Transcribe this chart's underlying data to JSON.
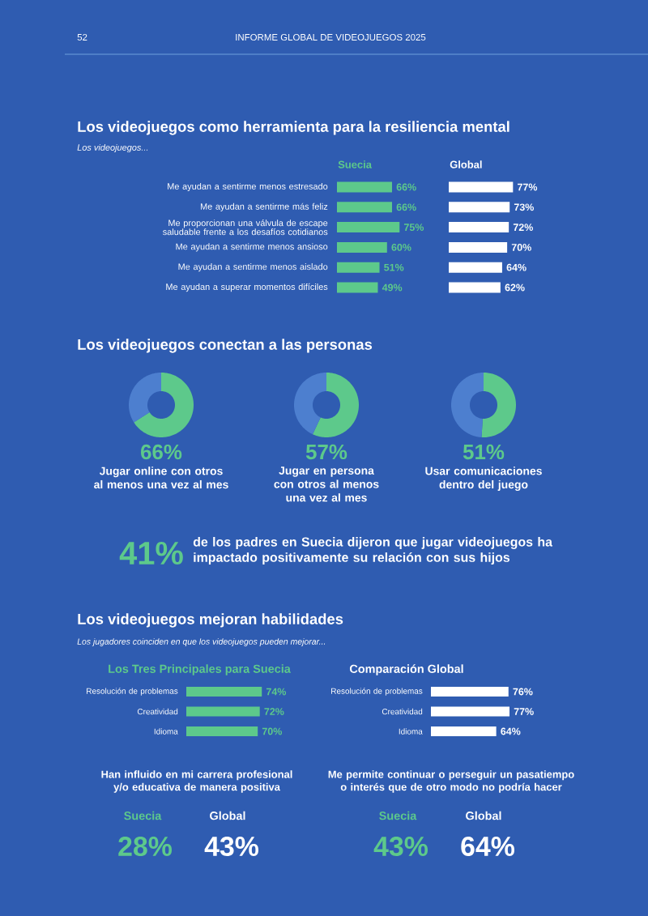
{
  "chart_data": [
    {
      "type": "other",
      "annotations": [
        "52",
        "INFORME GLOBAL DE VIDEOJUEGOS 2025"
      ]
    },
    {
      "type": "other",
      "title": "Los videojuegos como herramienta para la resiliencia mental",
      "subtitle": "Los videojuegos..."
    },
    {
      "type": "bar",
      "orientation": "horizontal",
      "categories": [
        "Me ayudan a sentirme menos estresado",
        "Me ayudan a sentirme más feliz",
        "Me proporcionan una válvula de escape saludable frente a los desafíos cotidianos",
        "Me ayudan a sentirme menos ansioso",
        "Me ayudan a sentirme menos aislado",
        "Me ayudan a superar momentos difíciles"
      ],
      "series": [
        {
          "name": "Suecia",
          "color": "#5dc98b",
          "values": [
            66,
            66,
            75,
            60,
            51,
            49
          ],
          "value_labels": [
            "66%",
            "66%",
            "75%",
            "60%",
            "51%",
            "49%"
          ]
        }
      ],
      "tick_labels": false
    },
    {
      "type": "bar",
      "orientation": "horizontal",
      "categories": [
        null,
        null,
        null,
        null,
        null,
        null
      ],
      "series": [
        {
          "name": "Global",
          "color": "#ffffff",
          "values": [
            77,
            73,
            72,
            70,
            64,
            62
          ],
          "value_labels": [
            "77%",
            "73%",
            "72%",
            "70%",
            "64%",
            "62%"
          ]
        }
      ],
      "tick_labels": false
    },
    {
      "type": "other",
      "title": "Los videojuegos conectan a las personas"
    },
    {
      "type": "donut",
      "categories": [
        null,
        null
      ],
      "values": [
        66,
        34
      ],
      "colors": [
        "#5dc98b",
        "#4d7fcf"
      ],
      "value_labels": [
        "66%",
        null
      ],
      "annotations": [
        "Jugar online con otros al menos una vez al mes"
      ]
    },
    {
      "type": "donut",
      "categories": [
        null,
        null
      ],
      "values": [
        57,
        43
      ],
      "colors": [
        "#5dc98b",
        "#4d7fcf"
      ],
      "value_labels": [
        "57%",
        null
      ],
      "annotations": [
        "Jugar en persona con otros al menos una vez al mes"
      ]
    },
    {
      "type": "donut",
      "categories": [
        null,
        null
      ],
      "values": [
        51,
        49
      ],
      "colors": [
        "#5dc98b",
        "#4d7fcf"
      ],
      "value_labels": [
        "51%",
        null
      ],
      "annotations": [
        "Usar comunicaciones dentro del juego"
      ]
    },
    {
      "type": "other",
      "annotations": [
        "41%",
        "de los padres en Suecia dijeron que jugar videojuegos ha impactado positivamente su relación con sus hijos"
      ]
    },
    {
      "type": "other",
      "title": "Los videojuegos mejoran habilidades",
      "subtitle": "Los jugadores coinciden en que los videojuegos pueden mejorar..."
    },
    {
      "type": "bar",
      "orientation": "horizontal",
      "title": "Los Tres Principales para Suecia",
      "categories": [
        "Resolución de problemas",
        "Creatividad",
        "Idioma"
      ],
      "color": "#5dc98b",
      "values": [
        74,
        72,
        70
      ],
      "value_labels": [
        "74%",
        "72%",
        "70%"
      ],
      "tick_labels": false
    },
    {
      "type": "bar",
      "orientation": "horizontal",
      "title": "Comparación Global",
      "categories": [
        "Resolución de problemas",
        "Creatividad",
        "Idioma"
      ],
      "color": "#ffffff",
      "values": [
        76,
        77,
        64
      ],
      "value_labels": [
        "76%",
        "77%",
        "64%"
      ],
      "tick_labels": false
    },
    {
      "type": "other",
      "title": "Han influido en mi carrera profesional y/o educativa de manera positiva",
      "annotations": [
        "Suecia",
        "Global",
        "28%",
        "43%"
      ]
    },
    {
      "type": "other",
      "title": "Me permite continuar o perseguir un pasatiempo o interés que de otro modo no podría hacer",
      "annotations": [
        "Suecia",
        "Global",
        "43%",
        "64%"
      ]
    }
  ]
}
